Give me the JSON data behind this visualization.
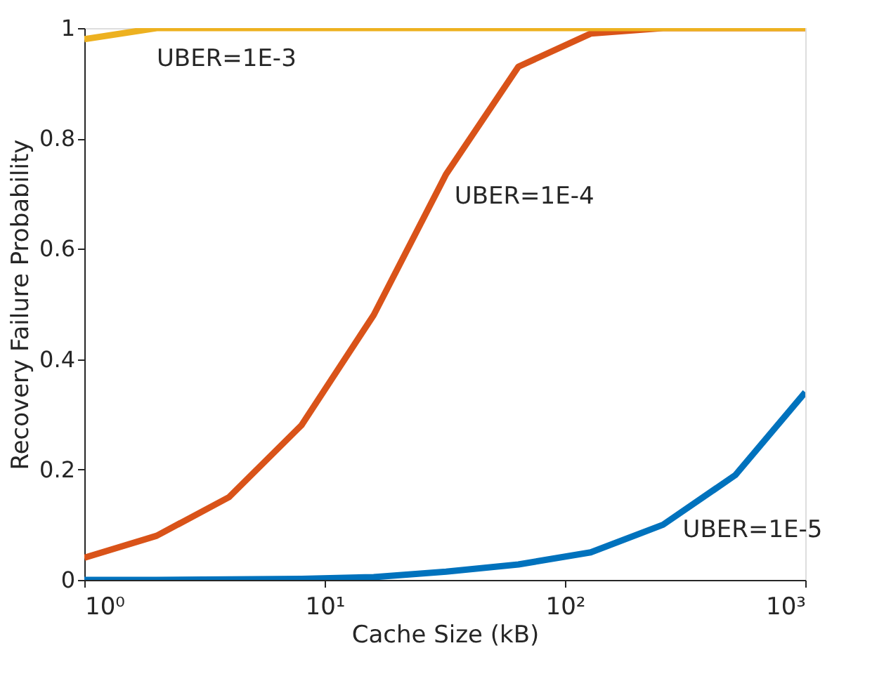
{
  "chart_data": {
    "type": "line",
    "xlabel": "Cache Size (kB)",
    "ylabel": "Recovery Failure Probability",
    "x": [
      1,
      2,
      4,
      8,
      16,
      32,
      64,
      128,
      256,
      512,
      1000
    ],
    "series": [
      {
        "name": "UBER=1E-5",
        "color": "#0072bd",
        "values": [
          0,
          0,
          0.001,
          0.002,
          0.005,
          0.015,
          0.028,
          0.05,
          0.1,
          0.19,
          0.34
        ]
      },
      {
        "name": "UBER=1E-4",
        "color": "#d95319",
        "values": [
          0.04,
          0.08,
          0.15,
          0.28,
          0.48,
          0.735,
          0.93,
          0.99,
          1,
          1,
          1
        ]
      },
      {
        "name": "UBER=1E-3",
        "color": "#edb120",
        "values": [
          0.98,
          1,
          1,
          1,
          1,
          1,
          1,
          1,
          1,
          1,
          1
        ]
      }
    ],
    "log": "x",
    "xlim": [
      1,
      1000
    ],
    "ylim": [
      0,
      1
    ],
    "xticks": [
      {
        "value": 1,
        "label": "10⁰"
      },
      {
        "value": 10,
        "label": "10¹"
      },
      {
        "value": 100,
        "label": "10²"
      },
      {
        "value": 1000,
        "label": "10³"
      }
    ],
    "yticks": [
      0,
      0.2,
      0.4,
      0.6,
      0.8,
      1
    ],
    "grid": false,
    "legend": false,
    "marker": "none",
    "line_style": "solid"
  }
}
